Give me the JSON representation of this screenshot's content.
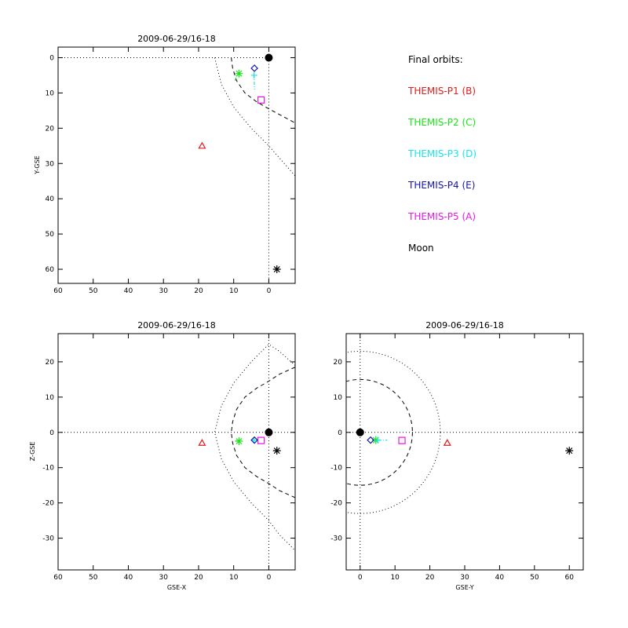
{
  "colors": {
    "THEMIS-P1": "#e11b1b",
    "THEMIS-P2": "#19e619",
    "THEMIS-P3": "#19e6e6",
    "THEMIS-P4": "#1414b4",
    "THEMIS-P5": "#e619e6",
    "Moon": "#000000",
    "Earth": "#000000"
  },
  "legend": {
    "heading": "Final orbits:",
    "items": [
      {
        "label": "THEMIS-P1 (B)",
        "key": "THEMIS-P1"
      },
      {
        "label": "THEMIS-P2 (C)",
        "key": "THEMIS-P2"
      },
      {
        "label": "THEMIS-P3 (D)",
        "key": "THEMIS-P3"
      },
      {
        "label": "THEMIS-P4 (E)",
        "key": "THEMIS-P4"
      },
      {
        "label": "THEMIS-P5 (A)",
        "key": "THEMIS-P5"
      },
      {
        "label": "Moon",
        "key": "Moon"
      }
    ]
  },
  "chart_data": [
    {
      "id": "xy",
      "type": "scatter",
      "title": "2009-06-29/16-18",
      "xlabel": "",
      "ylabel": "Y-GSE",
      "xlim": [
        60,
        -7.5
      ],
      "ylim": [
        64,
        -3
      ],
      "xticks": [
        60,
        50,
        40,
        30,
        20,
        10,
        0
      ],
      "yticks": [
        0,
        10,
        20,
        30,
        40,
        50,
        60
      ],
      "grid": false,
      "points": [
        {
          "name": "THEMIS-P1",
          "x": 19,
          "y": 25,
          "marker": "triangle"
        },
        {
          "name": "THEMIS-P2",
          "x": 8.5,
          "y": 4.5,
          "marker": "asterisk"
        },
        {
          "name": "THEMIS-P3",
          "x": 4.2,
          "y": 5,
          "marker": "plus"
        },
        {
          "name": "THEMIS-P4",
          "x": 4.1,
          "y": 3,
          "marker": "diamond"
        },
        {
          "name": "THEMIS-P5",
          "x": 2.2,
          "y": 12,
          "marker": "square"
        },
        {
          "name": "Moon",
          "x": -2.3,
          "y": 60,
          "marker": "asterisk"
        },
        {
          "name": "Earth",
          "x": 0,
          "y": 0,
          "marker": "disk"
        }
      ],
      "tracks": [
        {
          "name": "THEMIS-P2",
          "style": "dashdot",
          "x": [
            9.6,
            9.3,
            8.9,
            8.6
          ],
          "y": [
            6.5,
            5.6,
            4.8,
            4.2
          ]
        },
        {
          "name": "THEMIS-P3",
          "style": "dashdot",
          "x": [
            4.2,
            4.2,
            4.1,
            4.0
          ],
          "y": [
            4.8,
            6.2,
            7.6,
            9.0
          ]
        }
      ],
      "boundaries": [
        {
          "style": "dotted",
          "x": [
            15.4,
            13.5,
            10,
            5,
            0,
            -7.5
          ],
          "y": [
            0,
            7.5,
            14,
            20,
            25,
            33.5
          ]
        },
        {
          "style": "dashed",
          "x": [
            10.7,
            10.3,
            9.2,
            6.8,
            3.5,
            0,
            -7.5
          ],
          "y": [
            0,
            3,
            6.5,
            10,
            12.5,
            14.5,
            18.5
          ]
        },
        {
          "style": "dotted",
          "x": [
            60,
            0
          ],
          "y": [
            0,
            0
          ]
        },
        {
          "style": "dotted",
          "x": [
            0,
            0
          ],
          "y": [
            0,
            64
          ]
        }
      ]
    },
    {
      "id": "xz",
      "type": "scatter",
      "title": "2009-06-29/16-18",
      "xlabel": "GSE-X",
      "ylabel": "Z-GSE",
      "xlim": [
        60,
        -7.5
      ],
      "ylim": [
        -39,
        28
      ],
      "xticks": [
        60,
        50,
        40,
        30,
        20,
        10,
        0
      ],
      "yticks": [
        20,
        10,
        0,
        -10,
        -20,
        -30
      ],
      "grid": false,
      "points": [
        {
          "name": "THEMIS-P1",
          "x": 19,
          "y": -3,
          "marker": "triangle"
        },
        {
          "name": "THEMIS-P2",
          "x": 8.5,
          "y": -2.5,
          "marker": "asterisk"
        },
        {
          "name": "THEMIS-P3",
          "x": 4.2,
          "y": -2.2,
          "marker": "plus"
        },
        {
          "name": "THEMIS-P4",
          "x": 4.1,
          "y": -2.2,
          "marker": "diamond"
        },
        {
          "name": "THEMIS-P5",
          "x": 2.2,
          "y": -2.3,
          "marker": "square"
        },
        {
          "name": "Moon",
          "x": -2.3,
          "y": -5.2,
          "marker": "asterisk"
        },
        {
          "name": "Earth",
          "x": 0,
          "y": 0,
          "marker": "disk"
        }
      ],
      "tracks": [
        {
          "name": "THEMIS-P2",
          "style": "dashdot",
          "x": [
            9.4,
            8.9,
            8.3
          ],
          "y": [
            -2.4,
            -2.5,
            -2.6
          ]
        }
      ],
      "boundaries": [
        {
          "style": "dotted",
          "x": [
            -7.5,
            -3,
            0,
            5,
            10,
            13.5,
            15.4,
            13.5,
            10,
            5,
            0,
            -3,
            -7.5
          ],
          "y": [
            19,
            23,
            25,
            20,
            14,
            7.5,
            0,
            -7.5,
            -14,
            -20,
            -25,
            -29,
            -33.5
          ]
        },
        {
          "style": "dashed",
          "x": [
            -7.5,
            -3,
            0,
            3.5,
            6.8,
            9.2,
            10.3,
            10.7,
            10.3,
            9.2,
            6.8,
            3.5,
            0,
            -3,
            -7.5
          ],
          "y": [
            18.5,
            16.5,
            14.5,
            12.5,
            10,
            6.5,
            3,
            0,
            -3,
            -6.5,
            -10,
            -12.5,
            -14.5,
            -16.5,
            -18.5
          ]
        },
        {
          "style": "dotted",
          "x": [
            60,
            -7.5
          ],
          "y": [
            0,
            0
          ]
        },
        {
          "style": "dotted",
          "x": [
            0,
            0
          ],
          "y": [
            -39,
            28
          ]
        }
      ]
    },
    {
      "id": "yz",
      "type": "scatter",
      "title": "2009-06-29/16-18",
      "xlabel": "GSE-Y",
      "ylabel": "",
      "xlim": [
        -4,
        64
      ],
      "ylim": [
        -39,
        28
      ],
      "xticks": [
        0,
        10,
        20,
        30,
        40,
        50,
        60
      ],
      "yticks": [
        20,
        10,
        0,
        -10,
        -20,
        -30
      ],
      "grid": false,
      "points": [
        {
          "name": "THEMIS-P1",
          "x": 25,
          "y": -3,
          "marker": "triangle"
        },
        {
          "name": "THEMIS-P2",
          "x": 4.5,
          "y": -2.2,
          "marker": "asterisk"
        },
        {
          "name": "THEMIS-P3",
          "x": 5,
          "y": -2.2,
          "marker": "plus"
        },
        {
          "name": "THEMIS-P4",
          "x": 3,
          "y": -2.2,
          "marker": "diamond"
        },
        {
          "name": "THEMIS-P5",
          "x": 12,
          "y": -2.3,
          "marker": "square"
        },
        {
          "name": "Moon",
          "x": 60,
          "y": -5.2,
          "marker": "asterisk"
        },
        {
          "name": "Earth",
          "x": 0,
          "y": 0,
          "marker": "disk"
        }
      ],
      "tracks": [
        {
          "name": "THEMIS-P3",
          "style": "dashdot",
          "x": [
            5.2,
            6.5,
            7.8
          ],
          "y": [
            -2.2,
            -2.2,
            -2.2
          ]
        }
      ],
      "circles": [
        {
          "style": "dotted",
          "cx": 0,
          "cy": 0,
          "r": 23
        },
        {
          "style": "dashed",
          "cx": 0,
          "cy": 0,
          "r": 15
        }
      ],
      "boundaries": [
        {
          "style": "dotted",
          "x": [
            -4,
            64
          ],
          "y": [
            0,
            0
          ]
        },
        {
          "style": "dotted",
          "x": [
            0,
            0
          ],
          "y": [
            -39,
            28
          ]
        }
      ]
    }
  ]
}
